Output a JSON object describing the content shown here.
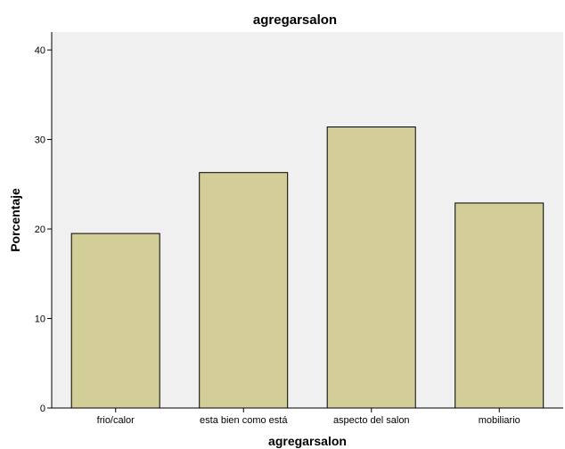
{
  "chart_data": {
    "type": "bar",
    "title": "agregarsalon",
    "xlabel": "agregarsalon",
    "ylabel": "Porcentaje",
    "categories": [
      "frio/calor",
      "esta bien como está",
      "aspecto del salon",
      "mobiliario"
    ],
    "values": [
      19.5,
      26.3,
      31.4,
      22.9
    ],
    "ylim": [
      0,
      42
    ],
    "yticks": [
      0,
      10,
      20,
      30,
      40
    ],
    "grid": false,
    "colors": {
      "bar_fill": "#d3cd97",
      "bar_stroke": "#000000",
      "plot_background": "#f0f0f0"
    }
  }
}
